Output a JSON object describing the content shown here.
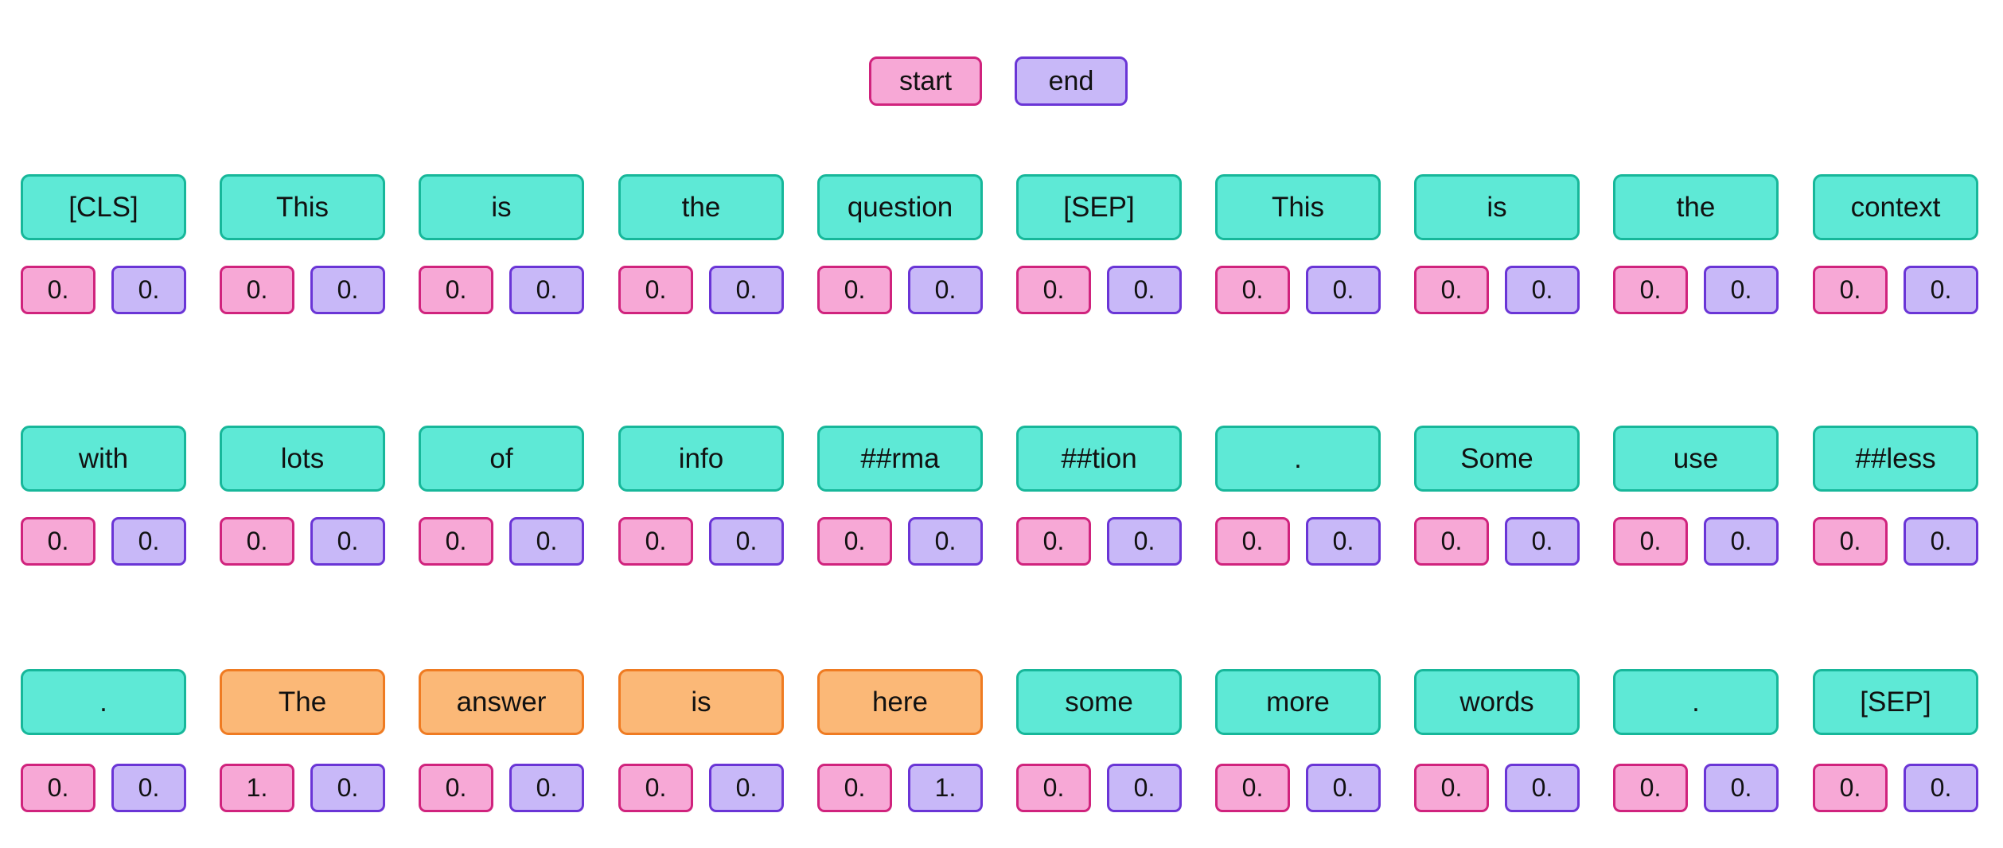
{
  "legend": {
    "start_label": "start",
    "end_label": "end"
  },
  "colors": {
    "start_fill": "#f7a8d6",
    "start_border": "#d0237d",
    "end_fill": "#c8b8f8",
    "end_border": "#6a35d6",
    "token_fill": "#5ee9d6",
    "token_border": "#17b79a",
    "answer_fill": "#fbb877",
    "answer_border": "#ef7b22"
  },
  "rows": [
    {
      "tokens": [
        {
          "text": "[CLS]",
          "answer": false,
          "start": "0.",
          "end": "0."
        },
        {
          "text": "This",
          "answer": false,
          "start": "0.",
          "end": "0."
        },
        {
          "text": "is",
          "answer": false,
          "start": "0.",
          "end": "0."
        },
        {
          "text": "the",
          "answer": false,
          "start": "0.",
          "end": "0."
        },
        {
          "text": "question",
          "answer": false,
          "start": "0.",
          "end": "0."
        },
        {
          "text": "[SEP]",
          "answer": false,
          "start": "0.",
          "end": "0."
        },
        {
          "text": "This",
          "answer": false,
          "start": "0.",
          "end": "0."
        },
        {
          "text": "is",
          "answer": false,
          "start": "0.",
          "end": "0."
        },
        {
          "text": "the",
          "answer": false,
          "start": "0.",
          "end": "0."
        },
        {
          "text": "context",
          "answer": false,
          "start": "0.",
          "end": "0."
        }
      ]
    },
    {
      "tokens": [
        {
          "text": "with",
          "answer": false,
          "start": "0.",
          "end": "0."
        },
        {
          "text": "lots",
          "answer": false,
          "start": "0.",
          "end": "0."
        },
        {
          "text": "of",
          "answer": false,
          "start": "0.",
          "end": "0."
        },
        {
          "text": "info",
          "answer": false,
          "start": "0.",
          "end": "0."
        },
        {
          "text": "##rma",
          "answer": false,
          "start": "0.",
          "end": "0."
        },
        {
          "text": "##tion",
          "answer": false,
          "start": "0.",
          "end": "0."
        },
        {
          "text": ".",
          "answer": false,
          "start": "0.",
          "end": "0."
        },
        {
          "text": "Some",
          "answer": false,
          "start": "0.",
          "end": "0."
        },
        {
          "text": "use",
          "answer": false,
          "start": "0.",
          "end": "0."
        },
        {
          "text": "##less",
          "answer": false,
          "start": "0.",
          "end": "0."
        }
      ]
    },
    {
      "tokens": [
        {
          "text": ".",
          "answer": false,
          "start": "0.",
          "end": "0."
        },
        {
          "text": "The",
          "answer": true,
          "start": "1.",
          "end": "0."
        },
        {
          "text": "answer",
          "answer": true,
          "start": "0.",
          "end": "0."
        },
        {
          "text": "is",
          "answer": true,
          "start": "0.",
          "end": "0."
        },
        {
          "text": "here",
          "answer": true,
          "start": "0.",
          "end": "1."
        },
        {
          "text": "some",
          "answer": false,
          "start": "0.",
          "end": "0."
        },
        {
          "text": "more",
          "answer": false,
          "start": "0.",
          "end": "0."
        },
        {
          "text": "words",
          "answer": false,
          "start": "0.",
          "end": "0."
        },
        {
          "text": ".",
          "answer": false,
          "start": "0.",
          "end": "0."
        },
        {
          "text": "[SEP]",
          "answer": false,
          "start": "0.",
          "end": "0."
        }
      ]
    }
  ]
}
